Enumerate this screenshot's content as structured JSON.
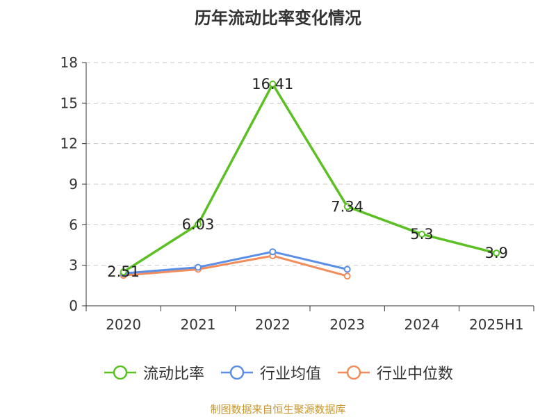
{
  "title": "历年流动比率变化情况",
  "source": "制图数据来自恒生聚源数据库",
  "chart_data": {
    "type": "line",
    "categories": [
      "2020",
      "2021",
      "2022",
      "2023",
      "2024",
      "2025H1"
    ],
    "ylim": [
      0,
      18
    ],
    "yticks": [
      0,
      3,
      6,
      9,
      12,
      15,
      18
    ],
    "ytick_labels": [
      "0",
      "3",
      "6",
      "9",
      "12",
      "15",
      "18"
    ],
    "grid": true,
    "legend_position": "bottom",
    "series": [
      {
        "name": "流动比率",
        "color": "#5cc024",
        "values": [
          2.51,
          6.03,
          16.41,
          7.34,
          5.3,
          3.9
        ],
        "labels": [
          "2.51",
          "6.03",
          "16.41",
          "7.34",
          "5.3",
          "3.9"
        ],
        "show_labels": true
      },
      {
        "name": "行业均值",
        "color": "#5b8ee6",
        "values": [
          2.4,
          2.85,
          4.0,
          2.7,
          null,
          null
        ],
        "show_labels": false
      },
      {
        "name": "行业中位数",
        "color": "#f28c5a",
        "values": [
          2.25,
          2.7,
          3.7,
          2.2,
          null,
          null
        ],
        "show_labels": false
      }
    ]
  }
}
